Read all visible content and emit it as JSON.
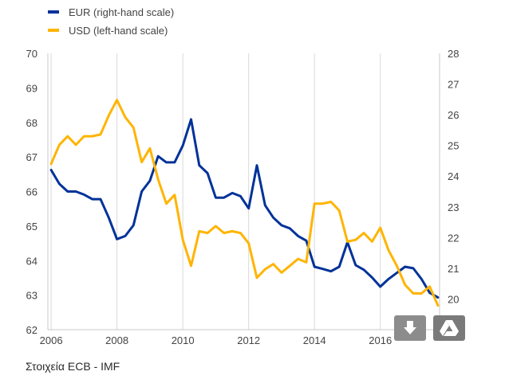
{
  "source": "Στοιχεία ECB - IMF",
  "controls": {
    "download_icon": "download-icon",
    "drive_icon": "google-drive-icon"
  },
  "chart_data": {
    "type": "line",
    "title": "",
    "legend_position": "top-left",
    "grid": {
      "x": true,
      "y": false
    },
    "x_axis": {
      "range": [
        2005.9,
        2017.8
      ],
      "ticks": [
        2006,
        2008,
        2010,
        2012,
        2014,
        2016
      ],
      "tick_labels": [
        "2006",
        "2008",
        "2010",
        "2012",
        "2014",
        "2016"
      ]
    },
    "y_left": {
      "range": [
        62,
        70
      ],
      "ticks": [
        62,
        63,
        64,
        65,
        66,
        67,
        68,
        69,
        70
      ],
      "tick_labels": [
        "62",
        "63",
        "64",
        "65",
        "66",
        "67",
        "68",
        "69",
        "70"
      ]
    },
    "y_right": {
      "range": [
        19,
        28
      ],
      "ticks": [
        20,
        21,
        22,
        23,
        24,
        25,
        26,
        27,
        28
      ],
      "tick_labels": [
        "20",
        "21",
        "22",
        "23",
        "24",
        "25",
        "26",
        "27",
        "28"
      ]
    },
    "series": [
      {
        "name": "EUR (right-hand scale)",
        "axis": "right",
        "color": "#003299",
        "x": [
          2006.0,
          2006.25,
          2006.5,
          2006.75,
          2007.0,
          2007.25,
          2007.5,
          2007.75,
          2008.0,
          2008.25,
          2008.5,
          2008.75,
          2009.0,
          2009.25,
          2009.5,
          2009.75,
          2010.0,
          2010.25,
          2010.5,
          2010.75,
          2011.0,
          2011.25,
          2011.5,
          2011.75,
          2012.0,
          2012.25,
          2012.5,
          2012.75,
          2013.0,
          2013.25,
          2013.5,
          2013.75,
          2014.0,
          2014.25,
          2014.5,
          2014.75,
          2015.0,
          2015.25,
          2015.5,
          2015.75,
          2016.0,
          2016.25,
          2016.5,
          2016.75,
          2017.0,
          2017.25,
          2017.5,
          2017.75
        ],
        "values": [
          24.2,
          23.75,
          23.5,
          23.5,
          23.4,
          23.25,
          23.25,
          22.65,
          21.95,
          22.05,
          22.4,
          23.5,
          23.85,
          24.65,
          24.45,
          24.45,
          25.0,
          25.85,
          24.35,
          24.1,
          23.3,
          23.3,
          23.45,
          23.35,
          22.95,
          24.35,
          23.05,
          22.65,
          22.4,
          22.3,
          22.05,
          21.9,
          21.05,
          20.98,
          20.9,
          21.05,
          21.85,
          21.1,
          20.95,
          20.7,
          20.4,
          20.65,
          20.85,
          21.05,
          21.0,
          20.65,
          20.2,
          20.05
        ]
      },
      {
        "name": "USD (left-hand scale)",
        "axis": "left",
        "color": "#ffb400",
        "x": [
          2006.0,
          2006.25,
          2006.5,
          2006.75,
          2007.0,
          2007.25,
          2007.5,
          2007.75,
          2008.0,
          2008.25,
          2008.5,
          2008.75,
          2009.0,
          2009.25,
          2009.5,
          2009.75,
          2010.0,
          2010.25,
          2010.5,
          2010.75,
          2011.0,
          2011.25,
          2011.5,
          2011.75,
          2012.0,
          2012.25,
          2012.5,
          2012.75,
          2013.0,
          2013.25,
          2013.5,
          2013.75,
          2014.0,
          2014.25,
          2014.5,
          2014.75,
          2015.0,
          2015.25,
          2015.5,
          2015.75,
          2016.0,
          2016.25,
          2016.5,
          2016.75,
          2017.0,
          2017.25,
          2017.5,
          2017.75
        ],
        "values": [
          66.8,
          67.35,
          67.6,
          67.35,
          67.6,
          67.6,
          67.65,
          68.2,
          68.65,
          68.15,
          67.85,
          66.85,
          67.25,
          66.35,
          65.65,
          65.9,
          64.6,
          63.85,
          64.85,
          64.8,
          65.0,
          64.8,
          64.85,
          64.8,
          64.5,
          63.5,
          63.75,
          63.9,
          63.65,
          63.85,
          64.05,
          63.95,
          65.65,
          65.65,
          65.7,
          65.45,
          64.55,
          64.6,
          64.8,
          64.55,
          64.95,
          64.3,
          63.85,
          63.3,
          63.05,
          63.05,
          63.25,
          62.7
        ]
      }
    ]
  }
}
